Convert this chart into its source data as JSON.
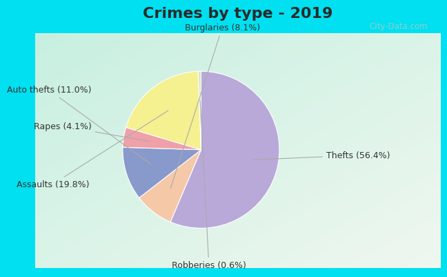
{
  "title": "Crimes by type - 2019",
  "title_fontsize": 16,
  "title_fontweight": "bold",
  "title_color": "#2a2a2a",
  "slices": [
    {
      "label": "Thefts (56.4%)",
      "value": 56.4,
      "color": "#b8a9d9"
    },
    {
      "label": "Burglaries (8.1%)",
      "value": 8.1,
      "color": "#f5c8a8"
    },
    {
      "label": "Auto thefts (11.0%)",
      "value": 11.0,
      "color": "#8899cc"
    },
    {
      "label": "Rapes (4.1%)",
      "value": 4.1,
      "color": "#f0a0a8"
    },
    {
      "label": "Assaults (19.8%)",
      "value": 19.8,
      "color": "#f5f090"
    },
    {
      "label": "Robberies (0.6%)",
      "value": 0.6,
      "color": "#d8e8c0"
    }
  ],
  "fig_bg_color": "#00e0f0",
  "chart_bg_tl": [
    0.78,
    0.94,
    0.88
  ],
  "chart_bg_br": [
    0.94,
    0.97,
    0.94
  ],
  "watermark": "City-Data.com",
  "startangle": 90,
  "label_fontsize": 9,
  "label_color": "#333333",
  "line_color": "#aaaaaa"
}
